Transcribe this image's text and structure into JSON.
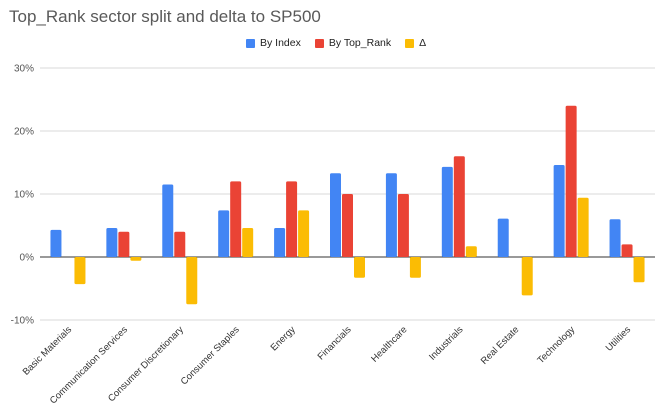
{
  "chart_data": {
    "type": "bar",
    "title": "Top_Rank sector split and delta to SP500",
    "xlabel": "",
    "ylabel": "",
    "ylim": [
      -10,
      30
    ],
    "yticks": [
      "-10%",
      "0%",
      "10%",
      "20%",
      "30%"
    ],
    "ytick_values": [
      -10,
      0,
      10,
      20,
      30
    ],
    "grid": true,
    "legend_position": "top",
    "categories": [
      "Basic Materials",
      "Communication Services",
      "Consumer Discretionary",
      "Consumer Staples",
      "Energy",
      "Financials",
      "Healthcare",
      "Industrials",
      "Real Estate",
      "Technology",
      "Utilities"
    ],
    "series": [
      {
        "name": "By Index",
        "color": "#4285f4",
        "values": [
          4.3,
          4.6,
          11.5,
          7.4,
          4.6,
          13.3,
          13.3,
          14.3,
          6.1,
          14.6,
          6.0
        ]
      },
      {
        "name": "By Top_Rank",
        "color": "#ea4335",
        "values": [
          0,
          4.0,
          4.0,
          12.0,
          12.0,
          10.0,
          10.0,
          16.0,
          0,
          24.0,
          2.0
        ]
      },
      {
        "name": "Δ",
        "color": "#fbbc04",
        "values": [
          -4.3,
          -0.6,
          -7.5,
          4.6,
          7.4,
          -3.3,
          -3.3,
          1.7,
          -6.1,
          9.4,
          -4.0
        ]
      }
    ]
  }
}
